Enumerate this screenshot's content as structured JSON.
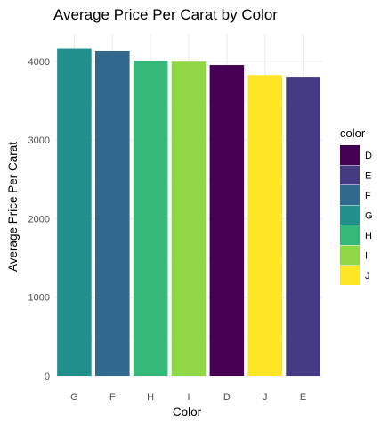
{
  "chart_data": {
    "type": "bar",
    "title": "Average Price Per Carat by Color",
    "xlabel": "Color",
    "ylabel": "Average Price Per Carat",
    "categories": [
      "G",
      "F",
      "H",
      "I",
      "D",
      "J",
      "E"
    ],
    "values": [
      4163,
      4135,
      4008,
      3996,
      3953,
      3826,
      3805
    ],
    "bar_colors": [
      "#21908C",
      "#31688E",
      "#35B779",
      "#8FD744",
      "#440154",
      "#FDE725",
      "#443A83"
    ],
    "ylim": [
      0,
      4350
    ],
    "yticks": [
      0,
      1000,
      2000,
      3000,
      4000
    ],
    "grid": true,
    "legend": {
      "title": "color",
      "position": "right",
      "entries": [
        {
          "label": "D",
          "color": "#440154"
        },
        {
          "label": "E",
          "color": "#443A83"
        },
        {
          "label": "F",
          "color": "#31688E"
        },
        {
          "label": "G",
          "color": "#21908C"
        },
        {
          "label": "H",
          "color": "#35B779"
        },
        {
          "label": "I",
          "color": "#8FD744"
        },
        {
          "label": "J",
          "color": "#FDE725"
        }
      ]
    }
  }
}
